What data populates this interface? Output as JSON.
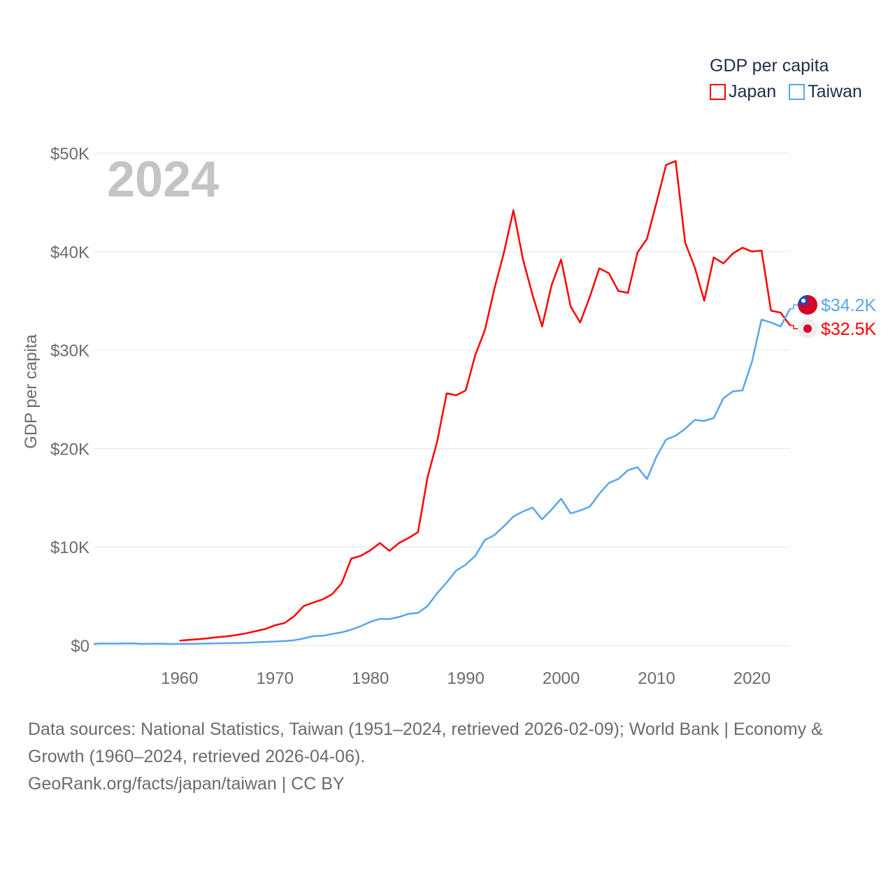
{
  "legend": {
    "title": "GDP per capita",
    "items": [
      {
        "label": "Japan",
        "color": "#ff0000"
      },
      {
        "label": "Taiwan",
        "color": "#5aa5ec"
      }
    ]
  },
  "year_label": "2024",
  "footer": {
    "sources": "Data sources: National Statistics, Taiwan (1951–2024, retrieved 2026-02-09); World Bank | Economy & Growth (1960–2024, retrieved 2026-04-06).",
    "credit": "GeoRank.org/facts/japan/taiwan | CC BY"
  },
  "chart_data": {
    "type": "line",
    "ylabel": "GDP per capita",
    "xlabel": "",
    "ylim": [
      0,
      50000
    ],
    "xlim": [
      1951,
      2024
    ],
    "yticks": [
      {
        "v": 0,
        "label": "$0"
      },
      {
        "v": 10000,
        "label": "$10K"
      },
      {
        "v": 20000,
        "label": "$20K"
      },
      {
        "v": 30000,
        "label": "$30K"
      },
      {
        "v": 40000,
        "label": "$40K"
      },
      {
        "v": 50000,
        "label": "$50K"
      }
    ],
    "xticks": [
      {
        "v": 1960,
        "label": "1960"
      },
      {
        "v": 1970,
        "label": "1970"
      },
      {
        "v": 1980,
        "label": "1980"
      },
      {
        "v": 1990,
        "label": "1990"
      },
      {
        "v": 2000,
        "label": "2000"
      },
      {
        "v": 2010,
        "label": "2010"
      },
      {
        "v": 2020,
        "label": "2020"
      }
    ],
    "grid": true,
    "legend_position": "top-right",
    "series": [
      {
        "name": "Japan",
        "color": "#ff0000",
        "start": 1960,
        "end_label": "$32.5K",
        "values": [
          480,
          560,
          630,
          720,
          840,
          920,
          1060,
          1230,
          1450,
          1670,
          2040,
          2270,
          2950,
          3990,
          4350,
          4670,
          5200,
          6330,
          8820,
          9100,
          9660,
          10400,
          9600,
          10400,
          10900,
          11500,
          17100,
          20700,
          25600,
          25400,
          25900,
          29500,
          32000,
          36200,
          39900,
          44200,
          39200,
          35600,
          32400,
          36600,
          39200,
          34400,
          32800,
          35400,
          38300,
          37800,
          36000,
          35800,
          39900,
          41300,
          45000,
          48800,
          49200,
          40900,
          38400,
          35000,
          39400,
          38800,
          39800,
          40400,
          40000,
          40100,
          34000,
          33800,
          32500
        ]
      },
      {
        "name": "Taiwan",
        "color": "#5aa5ec",
        "start": 1951,
        "end_label": "$34.2K",
        "values": [
          150,
          200,
          180,
          200,
          210,
          150,
          170,
          180,
          140,
          160,
          160,
          170,
          190,
          210,
          220,
          240,
          270,
          310,
          350,
          390,
          440,
          520,
          700,
          930,
          970,
          1160,
          1320,
          1600,
          1950,
          2390,
          2690,
          2670,
          2880,
          3200,
          3300,
          4000,
          5300,
          6400,
          7600,
          8200,
          9100,
          10700,
          11200,
          12100,
          13100,
          13600,
          14000,
          12800,
          13800,
          14900,
          13400,
          13700,
          14100,
          15400,
          16500,
          16900,
          17800,
          18100,
          16900,
          19200,
          20900,
          21300,
          22000,
          22900,
          22800,
          23100,
          25100,
          25800,
          25900,
          28800,
          33100,
          32800,
          32400,
          34200
        ]
      }
    ]
  }
}
